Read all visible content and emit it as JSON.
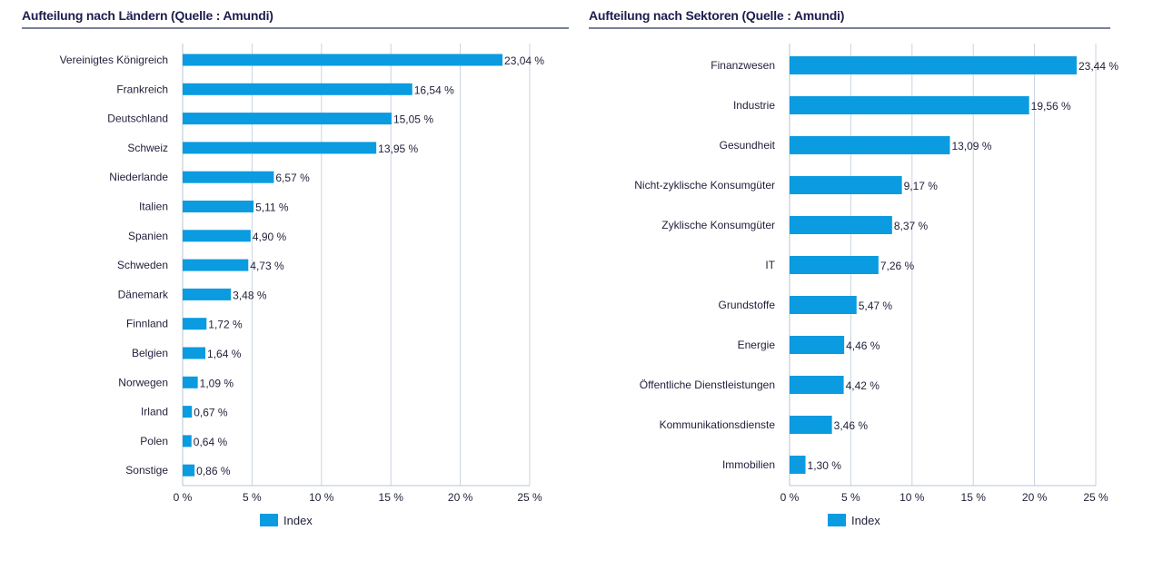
{
  "charts": [
    {
      "type": "bar",
      "orientation": "horizontal",
      "title": "Aufteilung nach Ländern (Quelle : Amundi)",
      "categories": [
        "Vereinigtes Königreich",
        "Frankreich",
        "Deutschland",
        "Schweiz",
        "Niederlande",
        "Italien",
        "Spanien",
        "Schweden",
        "Dänemark",
        "Finnland",
        "Belgien",
        "Norwegen",
        "Irland",
        "Polen",
        "Sonstige"
      ],
      "values": [
        23.04,
        16.54,
        15.05,
        13.95,
        6.57,
        5.11,
        4.9,
        4.73,
        3.48,
        1.72,
        1.64,
        1.09,
        0.67,
        0.64,
        0.86
      ],
      "value_labels": [
        "23,04 %",
        "16,54 %",
        "15,05 %",
        "13,95 %",
        "6,57 %",
        "5,11 %",
        "4,90 %",
        "4,73 %",
        "3,48 %",
        "1,72 %",
        "1,64 %",
        "1,09 %",
        "0,67 %",
        "0,64 %",
        "0,86 %"
      ],
      "ticks": [
        0,
        5,
        10,
        15,
        20,
        25
      ],
      "tick_labels": [
        "0 %",
        "5 %",
        "10 %",
        "15 %",
        "20 %",
        "25 %"
      ],
      "xlim": [
        0,
        25
      ],
      "legend": {
        "label": "Index",
        "position": "bottom-center"
      },
      "series": [
        {
          "name": "Index",
          "color": "#0a9be0"
        }
      ],
      "grid": true
    },
    {
      "type": "bar",
      "orientation": "horizontal",
      "title": "Aufteilung nach Sektoren (Quelle : Amundi)",
      "categories": [
        "Finanzwesen",
        "Industrie",
        "Gesundheit",
        "Nicht-zyklische Konsumgüter",
        "Zyklische Konsumgüter",
        "IT",
        "Grundstoffe",
        "Energie",
        "Öffentliche Dienstleistungen",
        "Kommunikationsdienste",
        "Immobilien"
      ],
      "values": [
        23.44,
        19.56,
        13.09,
        9.17,
        8.37,
        7.26,
        5.47,
        4.46,
        4.42,
        3.46,
        1.3
      ],
      "value_labels": [
        "23,44 %",
        "19,56 %",
        "13,09 %",
        "9,17 %",
        "8,37 %",
        "7,26 %",
        "5,47 %",
        "4,46 %",
        "4,42 %",
        "3,46 %",
        "1,30 %"
      ],
      "ticks": [
        0,
        5,
        10,
        15,
        20,
        25
      ],
      "tick_labels": [
        "0 %",
        "5 %",
        "10 %",
        "15 %",
        "20 %",
        "25 %"
      ],
      "xlim": [
        0,
        25
      ],
      "legend": {
        "label": "Index",
        "position": "bottom-center"
      },
      "series": [
        {
          "name": "Index",
          "color": "#0a9be0"
        }
      ],
      "grid": true
    }
  ],
  "colors": {
    "bar": "#0a9be0",
    "grid": "#c9d3e0",
    "axis": "#b9c3d3",
    "title": "#1d1d4f"
  }
}
